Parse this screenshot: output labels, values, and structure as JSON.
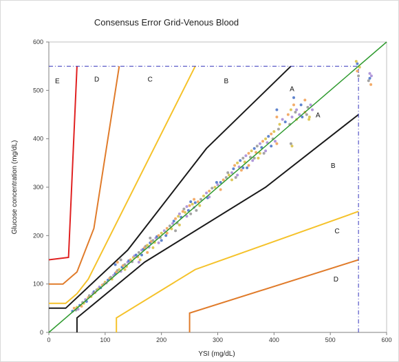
{
  "chart_data": {
    "type": "scatter",
    "title": "Consensus Error Grid-Venous Blood",
    "xlabel": "YSI (mg/dL)",
    "ylabel": "Glucose concentration (mg/dL)",
    "xlim": [
      0,
      600
    ],
    "ylim": [
      0,
      600
    ],
    "xticks": [
      0,
      100,
      200,
      300,
      400,
      500,
      600
    ],
    "yticks": [
      0,
      100,
      200,
      300,
      400,
      500,
      600
    ],
    "grid": false,
    "colors": {
      "identity": "#2e9a2e",
      "zone_ab": "#1a1a1a",
      "zone_bc": "#f5c22a",
      "zone_cd": "#e07b2a",
      "zone_de": "#e02020",
      "limit": "#3333bb",
      "points": [
        "#4f77c9",
        "#f2a35a",
        "#9a9a9a",
        "#d9c24a",
        "#a98dd6"
      ]
    },
    "identity_line": [
      [
        0,
        0
      ],
      [
        600,
        600
      ]
    ],
    "boundaries": [
      {
        "zone": "A/B",
        "points": [
          [
            0,
            50
          ],
          [
            30,
            50
          ],
          [
            140,
            170
          ],
          [
            280,
            380
          ],
          [
            430,
            550
          ]
        ]
      },
      {
        "zone": "A/B",
        "points": [
          [
            50,
            0
          ],
          [
            50,
            30
          ],
          [
            170,
            145
          ],
          [
            385,
            300
          ],
          [
            550,
            450
          ]
        ]
      },
      {
        "zone": "B/C",
        "points": [
          [
            0,
            60
          ],
          [
            30,
            60
          ],
          [
            50,
            80
          ],
          [
            70,
            110
          ],
          [
            260,
            550
          ]
        ]
      },
      {
        "zone": "B/C",
        "points": [
          [
            120,
            0
          ],
          [
            120,
            30
          ],
          [
            260,
            130
          ],
          [
            550,
            250
          ]
        ]
      },
      {
        "zone": "C/D",
        "points": [
          [
            0,
            100
          ],
          [
            25,
            100
          ],
          [
            50,
            125
          ],
          [
            80,
            215
          ],
          [
            125,
            550
          ]
        ]
      },
      {
        "zone": "C/D",
        "points": [
          [
            250,
            0
          ],
          [
            250,
            40
          ],
          [
            550,
            150
          ]
        ]
      },
      {
        "zone": "D/E",
        "points": [
          [
            0,
            150
          ],
          [
            35,
            155
          ],
          [
            50,
            550
          ]
        ]
      }
    ],
    "limit_lines": [
      {
        "points": [
          [
            0,
            550
          ],
          [
            550,
            550
          ]
        ]
      },
      {
        "points": [
          [
            550,
            0
          ],
          [
            550,
            550
          ]
        ]
      }
    ],
    "zone_labels": [
      {
        "text": "E",
        "x": 15,
        "y": 515
      },
      {
        "text": "D",
        "x": 85,
        "y": 518
      },
      {
        "text": "C",
        "x": 180,
        "y": 518
      },
      {
        "text": "B",
        "x": 315,
        "y": 515
      },
      {
        "text": "A",
        "x": 432,
        "y": 498
      },
      {
        "text": "A",
        "x": 478,
        "y": 444
      },
      {
        "text": "B",
        "x": 505,
        "y": 340
      },
      {
        "text": "C",
        "x": 512,
        "y": 205
      },
      {
        "text": "D",
        "x": 510,
        "y": 105
      }
    ],
    "points": [
      [
        42,
        44
      ],
      [
        45,
        50
      ],
      [
        48,
        46
      ],
      [
        50,
        52
      ],
      [
        52,
        48
      ],
      [
        55,
        56
      ],
      [
        58,
        54
      ],
      [
        60,
        62
      ],
      [
        62,
        60
      ],
      [
        65,
        68
      ],
      [
        67,
        64
      ],
      [
        70,
        72
      ],
      [
        72,
        76
      ],
      [
        75,
        74
      ],
      [
        78,
        80
      ],
      [
        80,
        84
      ],
      [
        82,
        82
      ],
      [
        85,
        88
      ],
      [
        88,
        90
      ],
      [
        90,
        94
      ],
      [
        92,
        92
      ],
      [
        95,
        98
      ],
      [
        98,
        100
      ],
      [
        100,
        104
      ],
      [
        102,
        102
      ],
      [
        105,
        108
      ],
      [
        108,
        112
      ],
      [
        110,
        114
      ],
      [
        112,
        110
      ],
      [
        115,
        118
      ],
      [
        118,
        122
      ],
      [
        120,
        125
      ],
      [
        122,
        128
      ],
      [
        125,
        130
      ],
      [
        128,
        126
      ],
      [
        130,
        135
      ],
      [
        132,
        138
      ],
      [
        135,
        140
      ],
      [
        138,
        136
      ],
      [
        140,
        145
      ],
      [
        142,
        148
      ],
      [
        145,
        150
      ],
      [
        148,
        146
      ],
      [
        150,
        155
      ],
      [
        152,
        158
      ],
      [
        155,
        160
      ],
      [
        158,
        156
      ],
      [
        160,
        165
      ],
      [
        162,
        150
      ],
      [
        165,
        170
      ],
      [
        168,
        172
      ],
      [
        170,
        175
      ],
      [
        172,
        178
      ],
      [
        175,
        180
      ],
      [
        178,
        176
      ],
      [
        180,
        185
      ],
      [
        182,
        188
      ],
      [
        185,
        190
      ],
      [
        188,
        186
      ],
      [
        190,
        195
      ],
      [
        192,
        198
      ],
      [
        195,
        200
      ],
      [
        198,
        196
      ],
      [
        200,
        205
      ],
      [
        205,
        210
      ],
      [
        208,
        200
      ],
      [
        210,
        215
      ],
      [
        215,
        220
      ],
      [
        218,
        214
      ],
      [
        220,
        225
      ],
      [
        222,
        230
      ],
      [
        225,
        235
      ],
      [
        228,
        226
      ],
      [
        230,
        240
      ],
      [
        232,
        245
      ],
      [
        235,
        238
      ],
      [
        238,
        250
      ],
      [
        240,
        255
      ],
      [
        242,
        248
      ],
      [
        245,
        260
      ],
      [
        248,
        252
      ],
      [
        250,
        262
      ],
      [
        252,
        245
      ],
      [
        255,
        265
      ],
      [
        258,
        258
      ],
      [
        260,
        268
      ],
      [
        265,
        270
      ],
      [
        270,
        275
      ],
      [
        275,
        282
      ],
      [
        280,
        288
      ],
      [
        282,
        278
      ],
      [
        285,
        292
      ],
      [
        290,
        298
      ],
      [
        295,
        300
      ],
      [
        300,
        305
      ],
      [
        305,
        310
      ],
      [
        310,
        315
      ],
      [
        315,
        320
      ],
      [
        320,
        325
      ],
      [
        325,
        330
      ],
      [
        328,
        338
      ],
      [
        330,
        345
      ],
      [
        332,
        320
      ],
      [
        335,
        350
      ],
      [
        338,
        342
      ],
      [
        340,
        355
      ],
      [
        342,
        335
      ],
      [
        345,
        360
      ],
      [
        348,
        352
      ],
      [
        350,
        365
      ],
      [
        352,
        340
      ],
      [
        355,
        370
      ],
      [
        358,
        362
      ],
      [
        360,
        375
      ],
      [
        362,
        355
      ],
      [
        365,
        380
      ],
      [
        368,
        372
      ],
      [
        370,
        385
      ],
      [
        372,
        360
      ],
      [
        375,
        390
      ],
      [
        378,
        382
      ],
      [
        380,
        395
      ],
      [
        382,
        370
      ],
      [
        385,
        400
      ],
      [
        388,
        392
      ],
      [
        390,
        405
      ],
      [
        395,
        410
      ],
      [
        398,
        400
      ],
      [
        400,
        415
      ],
      [
        402,
        395
      ],
      [
        405,
        460
      ],
      [
        405,
        445
      ],
      [
        408,
        420
      ],
      [
        410,
        430
      ],
      [
        415,
        440
      ],
      [
        420,
        435
      ],
      [
        425,
        450
      ],
      [
        428,
        430
      ],
      [
        430,
        460
      ],
      [
        432,
        445
      ],
      [
        435,
        485
      ],
      [
        435,
        470
      ],
      [
        438,
        455
      ],
      [
        440,
        440
      ],
      [
        445,
        450
      ],
      [
        450,
        445
      ],
      [
        455,
        455
      ],
      [
        460,
        465
      ],
      [
        462,
        440
      ],
      [
        465,
        470
      ],
      [
        548,
        555
      ],
      [
        548,
        540
      ],
      [
        550,
        530
      ],
      [
        552,
        548
      ],
      [
        570,
        535
      ],
      [
        570,
        525
      ],
      [
        572,
        512
      ],
      [
        568,
        520
      ],
      [
        546,
        560
      ],
      [
        573,
        530
      ],
      [
        118,
        140
      ],
      [
        122,
        145
      ],
      [
        128,
        150
      ],
      [
        135,
        130
      ],
      [
        160,
        145
      ],
      [
        165,
        160
      ],
      [
        175,
        165
      ],
      [
        180,
        195
      ],
      [
        185,
        175
      ],
      [
        195,
        185
      ],
      [
        200,
        190
      ],
      [
        210,
        205
      ],
      [
        225,
        210
      ],
      [
        232,
        222
      ],
      [
        245,
        240
      ],
      [
        252,
        270
      ],
      [
        258,
        275
      ],
      [
        262,
        252
      ],
      [
        268,
        262
      ],
      [
        285,
        280
      ],
      [
        298,
        310
      ],
      [
        305,
        295
      ],
      [
        318,
        330
      ],
      [
        325,
        315
      ],
      [
        335,
        325
      ],
      [
        345,
        340
      ],
      [
        355,
        345
      ],
      [
        365,
        360
      ],
      [
        375,
        370
      ],
      [
        385,
        375
      ],
      [
        395,
        385
      ],
      [
        405,
        390
      ],
      [
        430,
        390
      ],
      [
        432,
        385
      ],
      [
        440,
        460
      ],
      [
        448,
        470
      ],
      [
        455,
        480
      ],
      [
        458,
        450
      ],
      [
        463,
        445
      ],
      [
        468,
        460
      ]
    ]
  }
}
